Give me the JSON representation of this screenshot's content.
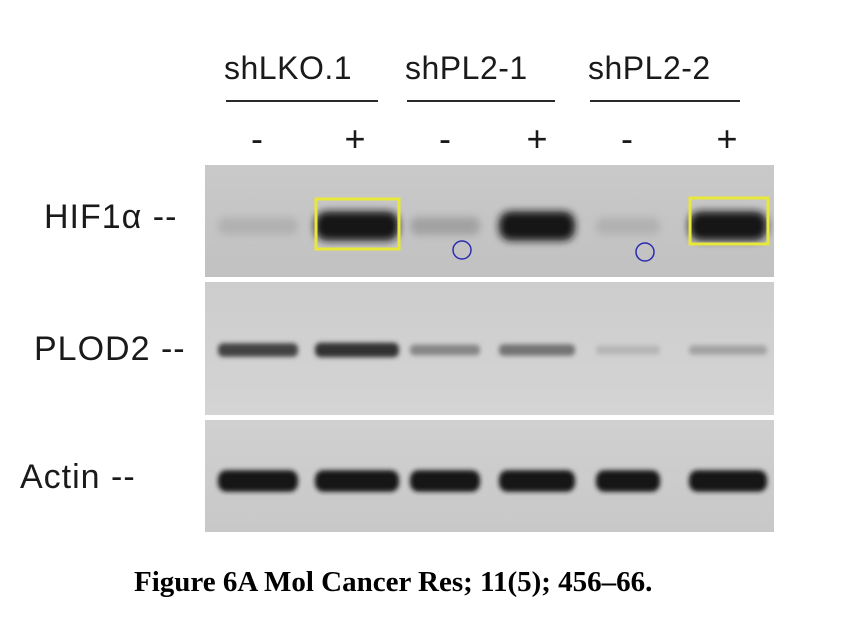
{
  "groups": [
    {
      "label": "shLKO.1"
    },
    {
      "label": "shPL2-1"
    },
    {
      "label": "shPL2-2"
    }
  ],
  "lanes": [
    {
      "sign": "-"
    },
    {
      "sign": "+"
    },
    {
      "sign": "-"
    },
    {
      "sign": "+"
    },
    {
      "sign": "-"
    },
    {
      "sign": "+"
    }
  ],
  "rows": [
    {
      "label": "HIF1α --",
      "band_intensity": [
        0.12,
        0.95,
        0.2,
        0.95,
        0.12,
        0.95
      ]
    },
    {
      "label": "PLOD2 --",
      "band_intensity": [
        0.7,
        0.8,
        0.35,
        0.45,
        0.1,
        0.2
      ]
    },
    {
      "label": "Actin --",
      "band_intensity": [
        0.95,
        0.95,
        0.95,
        0.95,
        0.95,
        0.95
      ]
    }
  ],
  "annotations": {
    "highlight_color": "#e8e83a",
    "circle_color": "#2a2ab0"
  },
  "caption": "Figure 6A Mol Cancer Res; 11(5); 456–66."
}
